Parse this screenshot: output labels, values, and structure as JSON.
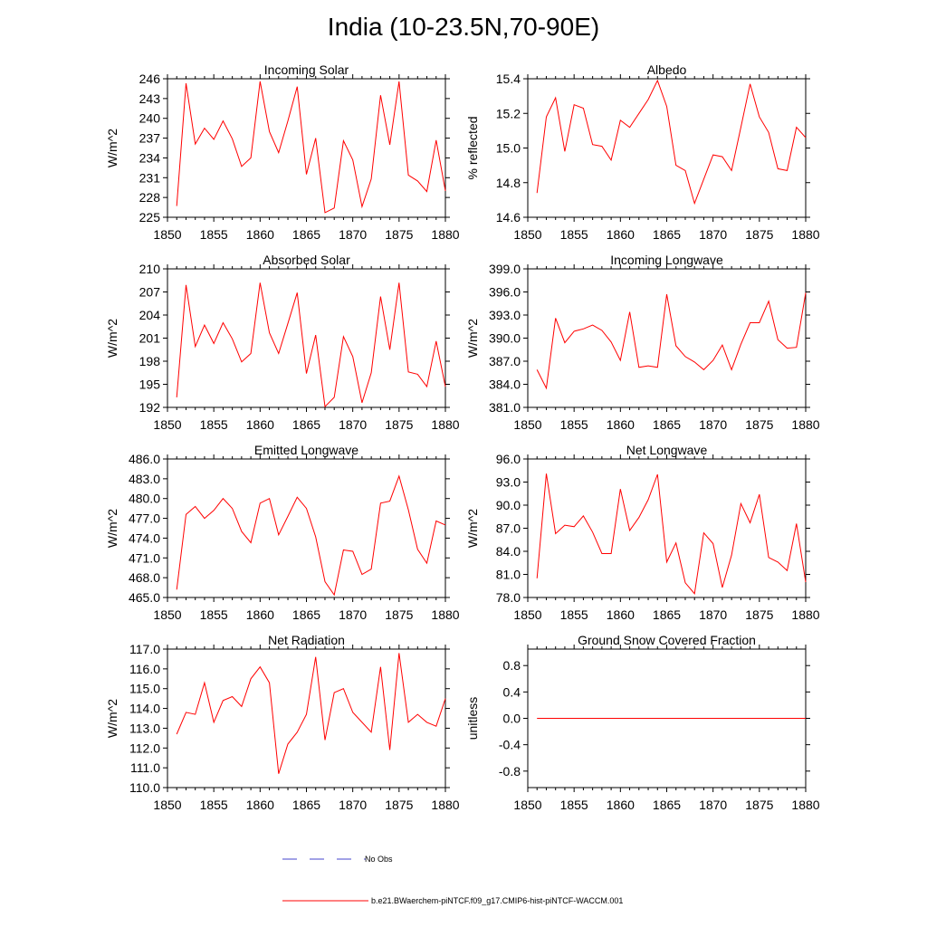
{
  "title": "India (10-23.5N,70-90E)",
  "colors": {
    "model": "#ff0000",
    "obs": "#4444cc",
    "axis": "#000000"
  },
  "legend": {
    "obs_label": "No Obs",
    "case_label": "b.e21.BWaerchem-piNTCF.f09_g17.CMIP6-hist-piNTCF-WACCM.001"
  },
  "chart_data": [
    {
      "type": "line",
      "title": "Incoming Solar",
      "ylabel": "W/m^2",
      "xlim": [
        1850,
        1880
      ],
      "ylim": [
        225,
        246
      ],
      "xticks": [
        1850,
        1855,
        1860,
        1865,
        1870,
        1875,
        1880
      ],
      "yticks": [
        "225",
        "228",
        "231",
        "234",
        "237",
        "240",
        "243",
        "246"
      ],
      "x": [
        1851,
        1852,
        1853,
        1854,
        1855,
        1856,
        1857,
        1858,
        1859,
        1860,
        1861,
        1862,
        1863,
        1864,
        1865,
        1866,
        1867,
        1868,
        1869,
        1870,
        1871,
        1872,
        1873,
        1874,
        1875,
        1876,
        1877,
        1878,
        1879,
        1880
      ],
      "y": [
        226.7,
        245.3,
        236.1,
        238.5,
        236.8,
        239.6,
        236.9,
        232.7,
        234.0,
        245.6,
        238.0,
        234.8,
        239.6,
        244.8,
        231.5,
        237.0,
        225.7,
        226.4,
        236.6,
        233.7,
        226.6,
        230.8,
        243.5,
        236.0,
        245.6,
        231.4,
        230.5,
        228.9,
        236.7,
        229.0
      ]
    },
    {
      "type": "line",
      "title": "Albedo",
      "ylabel": "% reflected",
      "xlim": [
        1850,
        1880
      ],
      "ylim": [
        14.6,
        15.4
      ],
      "xticks": [
        1850,
        1855,
        1860,
        1865,
        1870,
        1875,
        1880
      ],
      "yticks": [
        "14.6",
        "14.8",
        "15.0",
        "15.2",
        "15.4"
      ],
      "x": [
        1851,
        1852,
        1853,
        1854,
        1855,
        1856,
        1857,
        1858,
        1859,
        1860,
        1861,
        1862,
        1863,
        1864,
        1865,
        1866,
        1867,
        1868,
        1869,
        1870,
        1871,
        1872,
        1873,
        1874,
        1875,
        1876,
        1877,
        1878,
        1879,
        1880
      ],
      "y": [
        14.74,
        15.18,
        15.29,
        14.98,
        15.25,
        15.23,
        15.02,
        15.01,
        14.93,
        15.16,
        15.12,
        15.2,
        15.28,
        15.39,
        15.24,
        14.9,
        14.87,
        14.68,
        14.82,
        14.96,
        14.95,
        14.87,
        15.12,
        15.37,
        15.18,
        15.09,
        14.88,
        14.87,
        15.12,
        15.06
      ]
    },
    {
      "type": "line",
      "title": "Absorbed Solar",
      "ylabel": "W/m^2",
      "xlim": [
        1850,
        1880
      ],
      "ylim": [
        192,
        210
      ],
      "xticks": [
        1850,
        1855,
        1860,
        1865,
        1870,
        1875,
        1880
      ],
      "yticks": [
        "192",
        "195",
        "198",
        "201",
        "204",
        "207",
        "210"
      ],
      "x": [
        1851,
        1852,
        1853,
        1854,
        1855,
        1856,
        1857,
        1858,
        1859,
        1860,
        1861,
        1862,
        1863,
        1864,
        1865,
        1866,
        1867,
        1868,
        1869,
        1870,
        1871,
        1872,
        1873,
        1874,
        1875,
        1876,
        1877,
        1878,
        1879,
        1880
      ],
      "y": [
        193.3,
        207.9,
        199.9,
        202.7,
        200.3,
        203.0,
        200.9,
        197.9,
        199.0,
        208.2,
        201.7,
        199.0,
        202.9,
        206.9,
        196.4,
        201.4,
        192.1,
        193.3,
        201.2,
        198.6,
        192.6,
        196.5,
        206.4,
        199.5,
        208.2,
        196.6,
        196.3,
        194.7,
        200.6,
        194.7
      ]
    },
    {
      "type": "line",
      "title": "Incoming Longwave",
      "ylabel": "W/m^2",
      "xlim": [
        1850,
        1880
      ],
      "ylim": [
        381,
        399
      ],
      "xticks": [
        1850,
        1855,
        1860,
        1865,
        1870,
        1875,
        1880
      ],
      "yticks": [
        "381.0",
        "384.0",
        "387.0",
        "390.0",
        "393.0",
        "396.0",
        "399.0"
      ],
      "x": [
        1851,
        1852,
        1853,
        1854,
        1855,
        1856,
        1857,
        1858,
        1859,
        1860,
        1861,
        1862,
        1863,
        1864,
        1865,
        1866,
        1867,
        1868,
        1869,
        1870,
        1871,
        1872,
        1873,
        1874,
        1875,
        1876,
        1877,
        1878,
        1879,
        1880
      ],
      "y": [
        385.9,
        383.5,
        392.6,
        389.4,
        390.9,
        391.2,
        391.7,
        391.0,
        389.5,
        387.1,
        393.4,
        386.2,
        386.4,
        386.2,
        395.7,
        389.0,
        387.6,
        386.9,
        385.9,
        387.1,
        389.1,
        385.9,
        389.2,
        392.0,
        392.0,
        394.8,
        389.8,
        388.7,
        388.8,
        395.9
      ]
    },
    {
      "type": "line",
      "title": "Emitted Longwave",
      "ylabel": "W/m^2",
      "xlim": [
        1850,
        1880
      ],
      "ylim": [
        465,
        486
      ],
      "xticks": [
        1850,
        1855,
        1860,
        1865,
        1870,
        1875,
        1880
      ],
      "yticks": [
        "465.0",
        "468.0",
        "471.0",
        "474.0",
        "477.0",
        "480.0",
        "483.0",
        "486.0"
      ],
      "x": [
        1851,
        1852,
        1853,
        1854,
        1855,
        1856,
        1857,
        1858,
        1859,
        1860,
        1861,
        1862,
        1863,
        1864,
        1865,
        1866,
        1867,
        1868,
        1869,
        1870,
        1871,
        1872,
        1873,
        1874,
        1875,
        1876,
        1877,
        1878,
        1879,
        1880
      ],
      "y": [
        466.2,
        477.6,
        478.8,
        477.0,
        478.2,
        480.0,
        478.5,
        475.0,
        473.3,
        479.3,
        480.0,
        474.5,
        477.3,
        480.2,
        478.5,
        474.2,
        467.4,
        465.4,
        472.2,
        472.0,
        468.5,
        469.3,
        479.3,
        479.6,
        483.4,
        478.3,
        472.3,
        470.2,
        476.6,
        476.0
      ]
    },
    {
      "type": "line",
      "title": "Net Longwave",
      "ylabel": "W/m^2",
      "xlim": [
        1850,
        1880
      ],
      "ylim": [
        78,
        96
      ],
      "xticks": [
        1850,
        1855,
        1860,
        1865,
        1870,
        1875,
        1880
      ],
      "yticks": [
        "78.0",
        "81.0",
        "84.0",
        "87.0",
        "90.0",
        "93.0",
        "96.0"
      ],
      "x": [
        1851,
        1852,
        1853,
        1854,
        1855,
        1856,
        1857,
        1858,
        1859,
        1860,
        1861,
        1862,
        1863,
        1864,
        1865,
        1866,
        1867,
        1868,
        1869,
        1870,
        1871,
        1872,
        1873,
        1874,
        1875,
        1876,
        1877,
        1878,
        1879,
        1880
      ],
      "y": [
        80.5,
        94.1,
        86.3,
        87.4,
        87.2,
        88.6,
        86.5,
        83.7,
        83.7,
        92.1,
        86.7,
        88.4,
        90.7,
        94.0,
        82.6,
        85.1,
        79.9,
        78.5,
        86.4,
        85.0,
        79.3,
        83.5,
        90.2,
        87.7,
        91.4,
        83.2,
        82.6,
        81.5,
        87.6,
        80.0
      ]
    },
    {
      "type": "line",
      "title": "Net Radiation",
      "ylabel": "W/m^2",
      "xlim": [
        1850,
        1880
      ],
      "ylim": [
        110,
        117
      ],
      "xticks": [
        1850,
        1855,
        1860,
        1865,
        1870,
        1875,
        1880
      ],
      "yticks": [
        "110.0",
        "111.0",
        "112.0",
        "113.0",
        "114.0",
        "115.0",
        "116.0",
        "117.0"
      ],
      "x": [
        1851,
        1852,
        1853,
        1854,
        1855,
        1856,
        1857,
        1858,
        1859,
        1860,
        1861,
        1862,
        1863,
        1864,
        1865,
        1866,
        1867,
        1868,
        1869,
        1870,
        1871,
        1872,
        1873,
        1874,
        1875,
        1876,
        1877,
        1878,
        1879,
        1880
      ],
      "y": [
        112.7,
        113.8,
        113.7,
        115.3,
        113.3,
        114.4,
        114.6,
        114.1,
        115.5,
        116.1,
        115.3,
        110.7,
        112.2,
        112.8,
        113.7,
        116.6,
        112.4,
        114.8,
        115.0,
        113.8,
        113.3,
        112.8,
        116.1,
        111.9,
        116.8,
        113.3,
        113.7,
        113.3,
        113.1,
        114.5
      ]
    },
    {
      "type": "line",
      "title": "Ground Snow Covered Fraction",
      "ylabel": "unitless",
      "xlim": [
        1850,
        1880
      ],
      "ylim": [
        -1.05,
        1.05
      ],
      "xticks": [
        1850,
        1855,
        1860,
        1865,
        1870,
        1875,
        1880
      ],
      "ytickvals": [
        -0.8,
        -0.4,
        0.0,
        0.4,
        0.8
      ],
      "yticks": [
        "-0.8",
        "-0.4",
        "0.0",
        "0.4",
        "0.8"
      ],
      "x": [
        1851,
        1880
      ],
      "y": [
        0.0,
        0.0
      ]
    }
  ]
}
